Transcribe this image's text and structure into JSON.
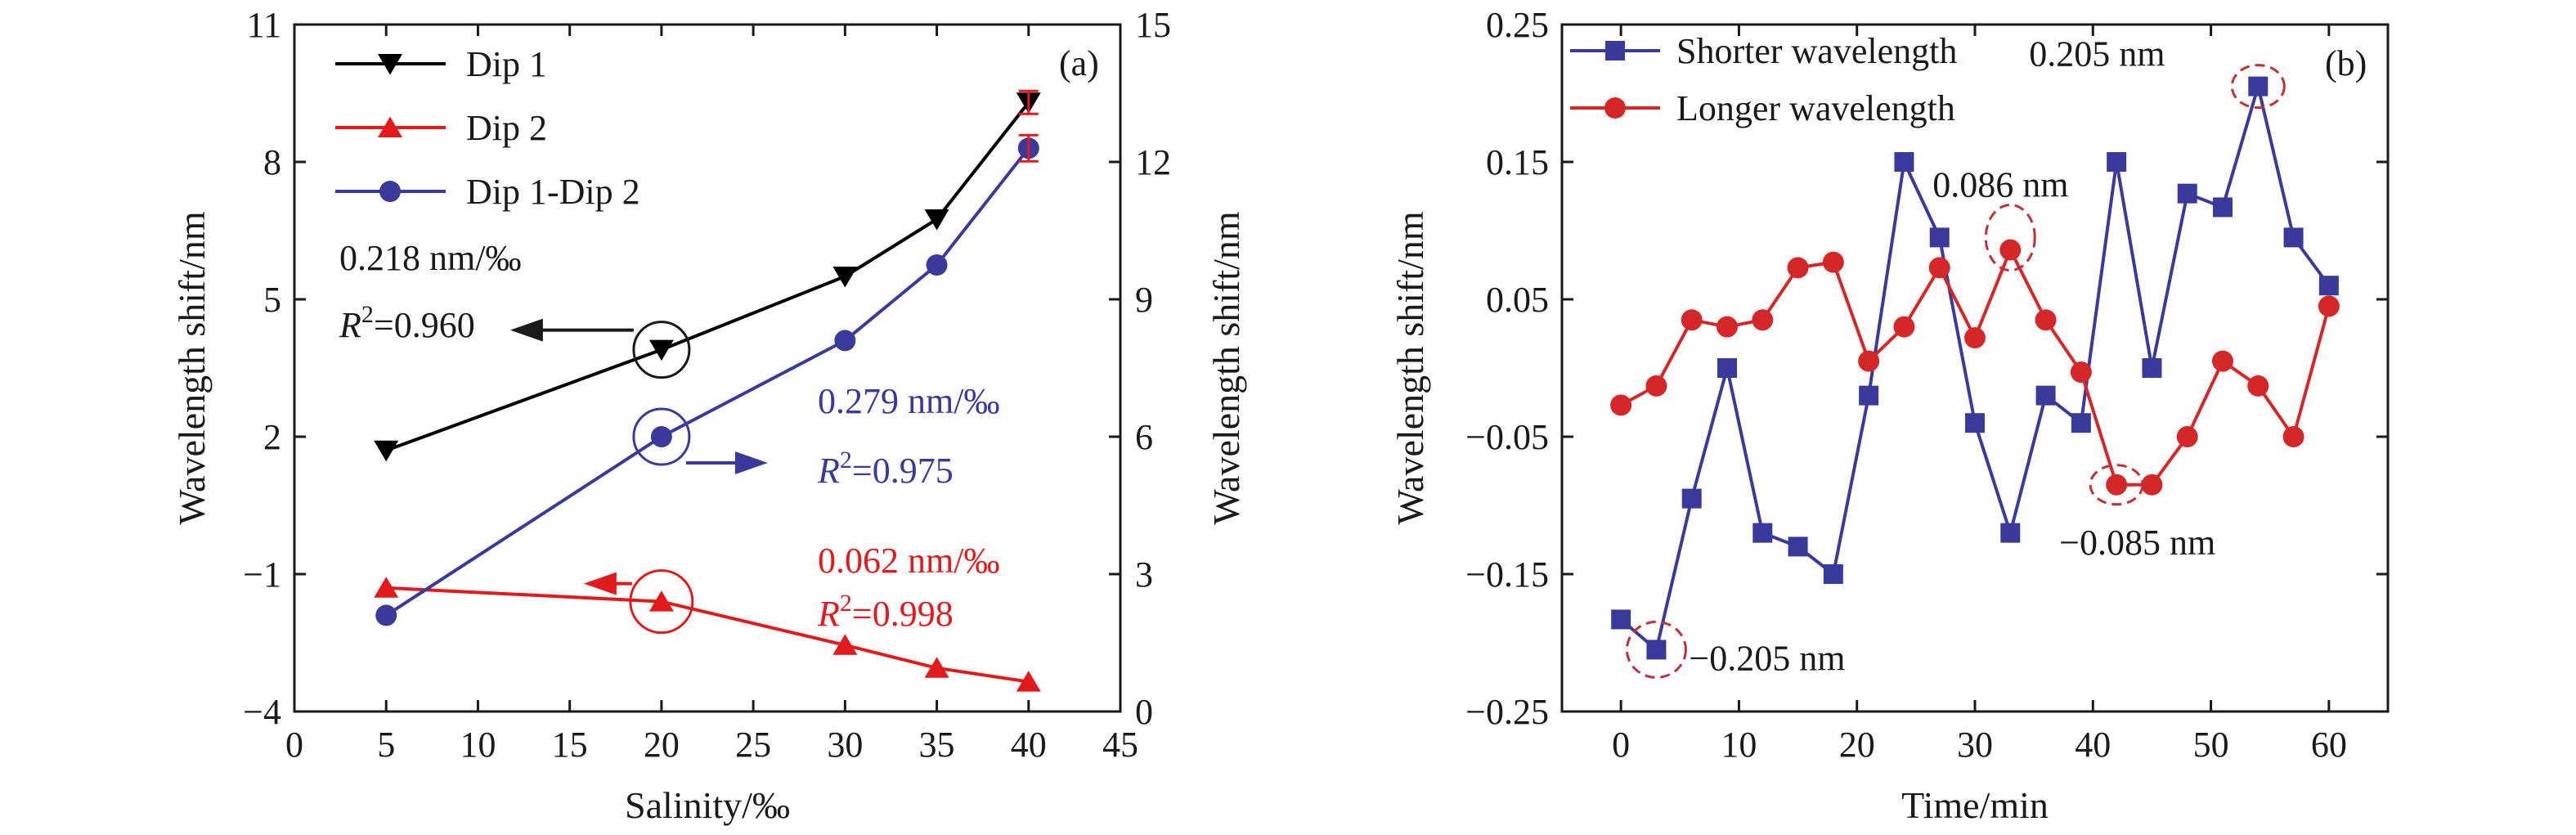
{
  "chart_data": [
    {
      "type": "line",
      "panel_label": "(a)",
      "xlabel": "Salinity/‰",
      "ylabel": "Wavelength shift/nm",
      "y2label": "Wavelength shift/nm",
      "xlim": [
        0,
        45
      ],
      "ylim": [
        -4,
        11
      ],
      "y2lim": [
        0,
        15
      ],
      "xticks": [
        "0",
        "5",
        "10",
        "15",
        "20",
        "25",
        "30",
        "35",
        "40",
        "45"
      ],
      "yticks": [
        "−4",
        "−1",
        "2",
        "5",
        "8",
        "11"
      ],
      "y2ticks": [
        "0",
        "3",
        "6",
        "9",
        "12",
        "15"
      ],
      "legend_position": "top-left",
      "series": [
        {
          "name": "Dip 1",
          "axis": "left",
          "color": "#000000",
          "marker": "triangle-down",
          "x": [
            5,
            20,
            30,
            35,
            40
          ],
          "y": [
            1.7,
            3.9,
            5.5,
            6.75,
            9.3
          ]
        },
        {
          "name": "Dip 2",
          "axis": "left",
          "color": "#e31a1c",
          "marker": "triangle-up",
          "x": [
            5,
            20,
            30,
            35,
            40
          ],
          "y": [
            -1.3,
            -1.6,
            -2.55,
            -3.05,
            -3.35
          ]
        },
        {
          "name": "Dip 1-Dip 2",
          "axis": "right",
          "color": "#3a3a9c",
          "marker": "circle",
          "x": [
            5,
            20,
            30,
            35,
            40
          ],
          "y": [
            2.1,
            6.0,
            8.1,
            9.75,
            12.3
          ]
        }
      ],
      "annotations": [
        {
          "id": "dip1",
          "color": "#1a1a1a",
          "text1": "0.218 nm/‰",
          "r2_prefix": "R",
          "r2_sup": "2",
          "r2_value": "=0.960"
        },
        {
          "id": "diff",
          "color": "#3a3a9c",
          "text1": "0.279 nm/‰",
          "r2_prefix": "R",
          "r2_sup": "2",
          "r2_value": "=0.975"
        },
        {
          "id": "dip2",
          "color": "#e31a1c",
          "text1": "0.062 nm/‰",
          "r2_prefix": "R",
          "r2_sup": "2",
          "r2_value": "=0.998"
        }
      ]
    },
    {
      "type": "line",
      "panel_label": "(b)",
      "xlabel": "Time/min",
      "ylabel": "Wavelength shift/nm",
      "xlim": [
        -5,
        65
      ],
      "ylim": [
        -0.25,
        0.25
      ],
      "xticks": [
        "0",
        "10",
        "20",
        "30",
        "40",
        "50",
        "60"
      ],
      "yticks": [
        "−0.25",
        "−0.15",
        "−0.05",
        "0.05",
        "0.15",
        "0.25"
      ],
      "legend_position": "top-left",
      "series": [
        {
          "name": "Shorter wavelength",
          "color": "#3a3a9c",
          "marker": "square",
          "x": [
            0,
            3,
            6,
            9,
            12,
            15,
            18,
            21,
            24,
            27,
            30,
            33,
            36,
            39,
            42,
            45,
            48,
            51,
            54,
            57,
            60
          ],
          "y": [
            -0.183,
            -0.205,
            -0.095,
            0.0,
            -0.12,
            -0.13,
            -0.15,
            -0.02,
            0.15,
            0.095,
            -0.04,
            -0.12,
            -0.02,
            -0.04,
            0.15,
            0.0,
            0.127,
            0.117,
            0.205,
            0.095,
            0.06
          ]
        },
        {
          "name": "Longer wavelength",
          "color": "#d62728",
          "marker": "circle",
          "x": [
            0,
            3,
            6,
            9,
            12,
            15,
            18,
            21,
            24,
            27,
            30,
            33,
            36,
            39,
            42,
            45,
            48,
            51,
            54,
            57,
            60
          ],
          "y": [
            -0.027,
            -0.013,
            0.035,
            0.03,
            0.035,
            0.073,
            0.077,
            0.005,
            0.03,
            0.073,
            0.022,
            0.086,
            0.035,
            -0.003,
            -0.085,
            -0.085,
            -0.05,
            0.005,
            -0.013,
            -0.05,
            0.045
          ]
        }
      ],
      "annotations": [
        {
          "id": "max_short",
          "text": "0.205 nm",
          "x": 54,
          "y": 0.205
        },
        {
          "id": "max_long",
          "text": "0.086 nm",
          "x": 33,
          "y": 0.086
        },
        {
          "id": "min_long",
          "text": "−0.085 nm",
          "x": 42,
          "y": -0.085
        },
        {
          "id": "min_short",
          "text": "−0.205 nm",
          "x": 3,
          "y": -0.205
        }
      ]
    }
  ]
}
